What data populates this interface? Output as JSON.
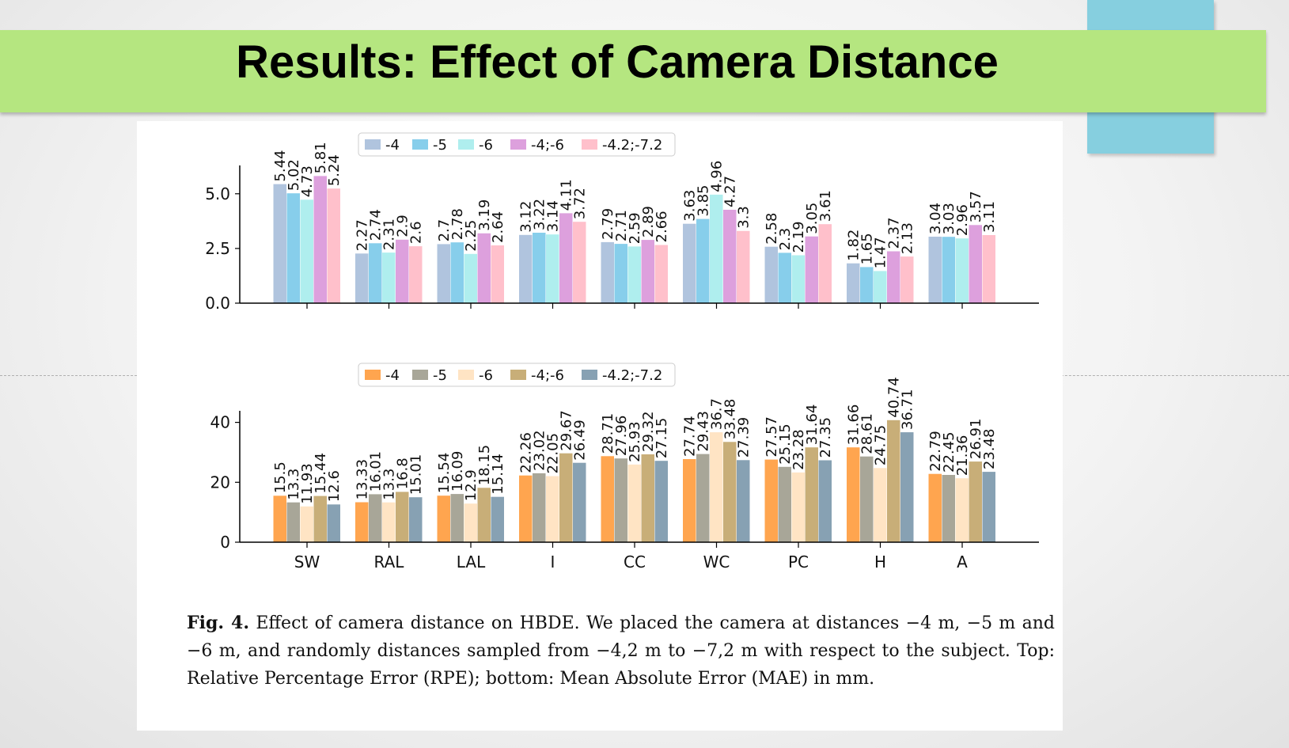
{
  "slide": {
    "title": "Results: Effect of Camera Distance"
  },
  "caption": {
    "label": "Fig. 4.",
    "text": "Effect of camera distance on HBDE. We placed the camera at distances −4 m, −5 m and −6 m, and randomly distances sampled from −4,2 m to −7,2 m with respect to the subject. Top: Relative Percentage Error (RPE); bottom: Mean Absolute Error (MAE) in mm."
  },
  "chart_data": [
    {
      "type": "bar",
      "title": "",
      "metric": "RPE",
      "xlabel": "",
      "ylabel": "",
      "ylim": [
        0,
        6.15
      ],
      "yticks": [
        0,
        2.5,
        5
      ],
      "ytick_labels": [
        "0.0",
        "2.5",
        "5.0"
      ],
      "categories": [
        "SW",
        "RAL",
        "LAL",
        "I",
        "CC",
        "WC",
        "PC",
        "H",
        "A"
      ],
      "show_category_labels": false,
      "legend_position": "top-center",
      "series": [
        {
          "name": "-4",
          "color": "#b0c4de",
          "values": [
            5.44,
            2.27,
            2.7,
            3.12,
            2.79,
            3.63,
            2.58,
            1.82,
            3.04
          ],
          "labels": [
            "5.44",
            "2.27",
            "2.7",
            "3.12",
            "2.79",
            "3.63",
            "2.58",
            "1.82",
            "3.04"
          ]
        },
        {
          "name": "-5",
          "color": "#87ceeb",
          "values": [
            5.02,
            2.74,
            2.78,
            3.22,
            2.71,
            3.85,
            2.3,
            1.65,
            3.03
          ],
          "labels": [
            "5.02",
            "2.74",
            "2.78",
            "3.22",
            "2.71",
            "3.85",
            "2.3",
            "1.65",
            "3.03"
          ]
        },
        {
          "name": "-6",
          "color": "#afeeee",
          "values": [
            4.73,
            2.31,
            2.25,
            3.14,
            2.59,
            4.96,
            2.19,
            1.47,
            2.96
          ],
          "labels": [
            "4.73",
            "2.31",
            "2.25",
            "3.14",
            "2.59",
            "4.96",
            "2.19",
            "1.47",
            "2.96"
          ]
        },
        {
          "name": "-4;-6",
          "color": "#dda0dd",
          "values": [
            5.81,
            2.9,
            3.19,
            4.11,
            2.89,
            4.27,
            3.05,
            2.37,
            3.57
          ],
          "labels": [
            "5.81",
            "2.9",
            "3.19",
            "4.11",
            "2.89",
            "4.27",
            "3.05",
            "2.37",
            "3.57"
          ]
        },
        {
          "name": "-4.2;-7.2",
          "color": "#ffc0cb",
          "values": [
            5.24,
            2.6,
            2.64,
            3.72,
            2.66,
            3.3,
            3.61,
            2.13,
            3.11
          ],
          "labels": [
            "5.24",
            "2.6",
            "2.64",
            "3.72",
            "2.66",
            "3.3",
            "3.61",
            "2.13",
            "3.11"
          ]
        }
      ]
    },
    {
      "type": "bar",
      "title": "",
      "metric": "MAE",
      "xlabel": "",
      "ylabel": "",
      "ylim": [
        0,
        42.8
      ],
      "yticks": [
        0,
        20,
        40
      ],
      "ytick_labels": [
        "0",
        "20",
        "40"
      ],
      "categories": [
        "SW",
        "RAL",
        "LAL",
        "I",
        "CC",
        "WC",
        "PC",
        "H",
        "A"
      ],
      "show_category_labels": true,
      "legend_position": "top-center",
      "series": [
        {
          "name": "-4",
          "color": "#ffa54f",
          "values": [
            15.5,
            13.33,
            15.54,
            22.26,
            28.71,
            27.74,
            27.57,
            31.66,
            22.79
          ],
          "labels": [
            "15.5",
            "13.33",
            "15.54",
            "22.26",
            "28.71",
            "27.74",
            "27.57",
            "31.66",
            "22.79"
          ]
        },
        {
          "name": "-5",
          "color": "#a8a698",
          "values": [
            13.3,
            16.01,
            16.09,
            23.02,
            27.96,
            29.43,
            25.15,
            28.61,
            22.45
          ],
          "labels": [
            "13.3",
            "16.01",
            "16.09",
            "23.02",
            "27.96",
            "29.43",
            "25.15",
            "28.61",
            "22.45"
          ]
        },
        {
          "name": "-6",
          "color": "#ffe4c4",
          "values": [
            11.93,
            13.3,
            12.9,
            22.05,
            25.93,
            36.7,
            23.28,
            24.75,
            21.36
          ],
          "labels": [
            "11.93",
            "13.3",
            "12.9",
            "22.05",
            "25.93",
            "36.7",
            "23.28",
            "24.75",
            "21.36"
          ]
        },
        {
          "name": "-4;-6",
          "color": "#c8ae78",
          "values": [
            15.44,
            16.8,
            18.15,
            29.67,
            29.32,
            33.48,
            31.64,
            40.74,
            26.91
          ],
          "labels": [
            "15.44",
            "16.8",
            "18.15",
            "29.67",
            "29.32",
            "33.48",
            "31.64",
            "40.74",
            "26.91"
          ]
        },
        {
          "name": "-4.2;-7.2",
          "color": "#87a1b3",
          "values": [
            12.6,
            15.01,
            15.14,
            26.49,
            27.15,
            27.39,
            27.35,
            36.71,
            23.48
          ],
          "labels": [
            "12.6",
            "15.01",
            "15.14",
            "26.49",
            "27.15",
            "27.39",
            "27.35",
            "36.71",
            "23.48"
          ]
        }
      ]
    }
  ]
}
